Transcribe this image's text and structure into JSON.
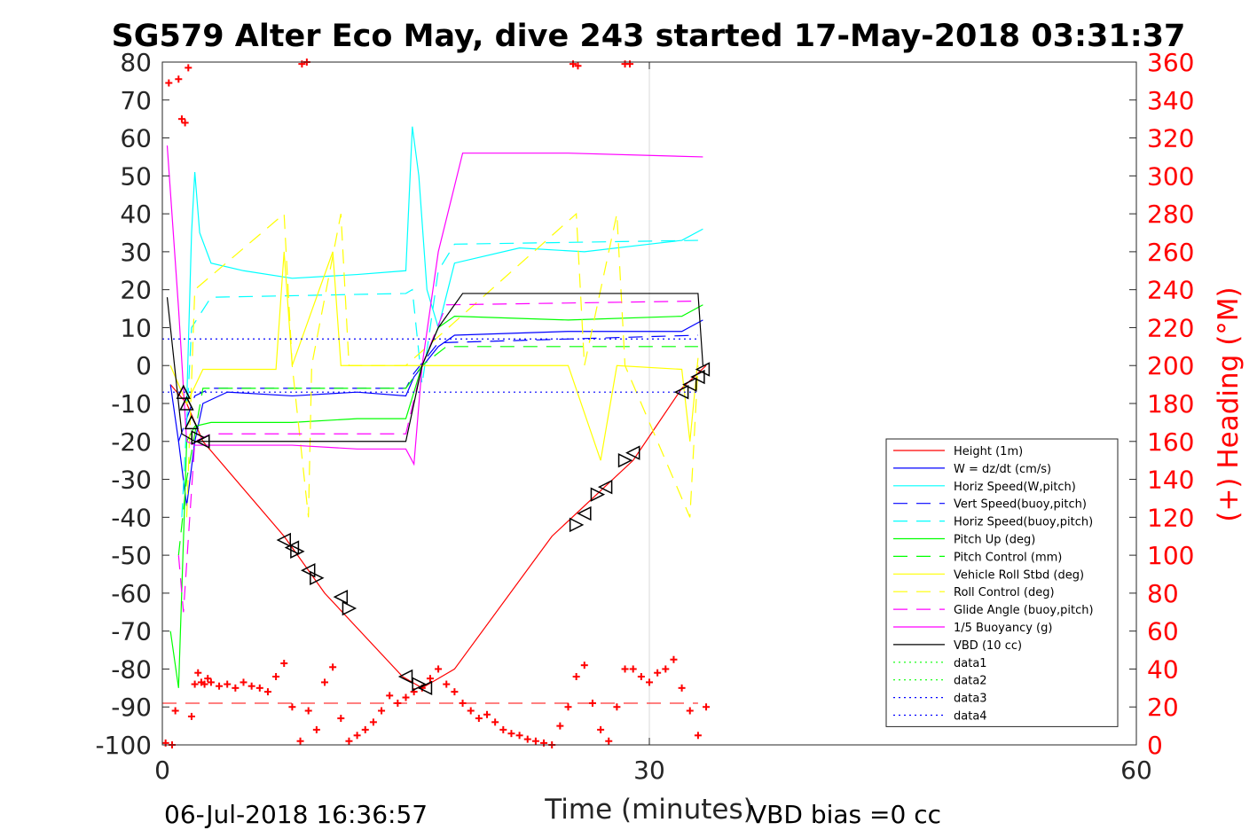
{
  "chart_data": {
    "type": "line",
    "title": "SG579 Alter Eco May, dive 243 started 17-May-2018 03:31:37",
    "xlabel": "Time (minutes)",
    "ylabel": "",
    "ylabel_right": "(+) Heading (°M)",
    "xlim": [
      0,
      60
    ],
    "ylim": [
      -100,
      80
    ],
    "ylim_right": [
      0,
      360
    ],
    "x_ticks": [
      "0",
      "30",
      "60"
    ],
    "y_ticks": [
      "80",
      "70",
      "60",
      "50",
      "40",
      "30",
      "20",
      "10",
      "0",
      "-10",
      "-20",
      "-30",
      "-40",
      "-50",
      "-60",
      "-70",
      "-80",
      "-90",
      "-100"
    ],
    "y_ticks_right": [
      "360",
      "340",
      "320",
      "300",
      "280",
      "260",
      "240",
      "220",
      "200",
      "180",
      "160",
      "140",
      "120",
      "100",
      "80",
      "60",
      "40",
      "20",
      "0"
    ],
    "grid": "x-only",
    "legend_position": "right",
    "footer_left": "06-Jul-2018 16:36:57",
    "footer_right": "VBD bias =0 cc",
    "series": [
      {
        "name": "Height (1m)",
        "color": "#ff0000",
        "style": "solid",
        "x": [
          0.5,
          1.5,
          2.5,
          7.5,
          10,
          14.8,
          16,
          18,
          24,
          29,
          32,
          33.5
        ],
        "y": [
          -5,
          -10,
          -20,
          -45,
          -60,
          -82,
          -85,
          -80,
          -45,
          -25,
          -6,
          0
        ]
      },
      {
        "name": "W = dz/dt (cm/s)",
        "color": "#0000ff",
        "style": "solid",
        "x": [
          0.5,
          1,
          1.5,
          2,
          2.5,
          4,
          8,
          12,
          15,
          15.5,
          17,
          18,
          25,
          32,
          33.3
        ],
        "y": [
          -5,
          -20,
          -37,
          -20,
          -10,
          -7,
          -8,
          -7,
          -8,
          -3,
          5,
          8,
          9,
          9,
          12
        ]
      },
      {
        "name": "Horiz Speed(W,pitch)",
        "color": "#00ffff",
        "style": "solid",
        "x": [
          1.5,
          1.8,
          2,
          2.3,
          3,
          5,
          8,
          12,
          15,
          15.4,
          15.8,
          16.3,
          17,
          18,
          22,
          26,
          30,
          32,
          33.3
        ],
        "y": [
          -10,
          35,
          51,
          35,
          27,
          25,
          23,
          24,
          25,
          63,
          50,
          20,
          10,
          27,
          31,
          30,
          32,
          33,
          36
        ]
      },
      {
        "name": "Vert Speed(buoy,pitch)",
        "color": "#0000ff",
        "style": "dash",
        "x": [
          1,
          2,
          3,
          15,
          15.5,
          17,
          33
        ],
        "y": [
          -20,
          -8,
          -6,
          -6,
          -2,
          6,
          8
        ]
      },
      {
        "name": "Horiz Speed(buoy,pitch)",
        "color": "#00ffff",
        "style": "dash",
        "x": [
          1.2,
          1.8,
          3,
          15,
          15.4,
          16,
          17,
          18,
          33
        ],
        "y": [
          -40,
          10,
          18,
          19,
          20,
          -5,
          25,
          32,
          33
        ]
      },
      {
        "name": "Pitch Up (deg)",
        "color": "#00ff00",
        "style": "solid",
        "x": [
          0.5,
          1,
          1.5,
          2,
          3,
          8,
          12,
          15,
          16,
          17,
          18,
          25,
          32,
          33.3
        ],
        "y": [
          -70,
          -85,
          -20,
          -16,
          -15,
          -15,
          -14,
          -14,
          0,
          10,
          13,
          12,
          13,
          16
        ]
      },
      {
        "name": "Pitch Control (mm)",
        "color": "#00ff00",
        "style": "dash",
        "x": [
          1,
          1.5,
          2.5,
          15,
          16,
          17.5,
          33
        ],
        "y": [
          -50,
          -30,
          -6,
          -6,
          0,
          5,
          5
        ]
      },
      {
        "name": "Vehicle Roll Stbd (deg)",
        "color": "#ffff00",
        "style": "solid",
        "x": [
          0.5,
          1.5,
          2.5,
          7,
          7.5,
          8,
          10.5,
          11,
          15,
          16,
          25,
          27,
          28,
          32,
          32.5,
          33
        ],
        "y": [
          0,
          -10,
          -1,
          -1,
          30,
          0,
          30,
          0,
          0,
          0,
          0,
          -25,
          0,
          -1,
          -20,
          2
        ]
      },
      {
        "name": "Roll Control (deg)",
        "color": "#ffff00",
        "style": "dash",
        "x": [
          1.5,
          2,
          7.5,
          8,
          9,
          9.2,
          11,
          11.5,
          14.5,
          15,
          25.5,
          26,
          28,
          28.5,
          32.5,
          33
        ],
        "y": [
          -40,
          20,
          40,
          0,
          -40,
          0,
          40,
          0,
          0,
          0,
          40,
          0,
          40,
          0,
          -40,
          0
        ]
      },
      {
        "name": "Glide Angle (buoy,pitch)",
        "color": "#ff00ff",
        "style": "dash",
        "x": [
          1,
          1.3,
          2,
          3,
          15,
          16,
          17.5,
          33
        ],
        "y": [
          -50,
          -65,
          -20,
          -18,
          -18,
          0,
          16,
          17
        ]
      },
      {
        "name": "1/5 Buoyancy (g)",
        "color": "#ff00ff",
        "style": "solid",
        "x": [
          0.3,
          1,
          1.5,
          2,
          3,
          8,
          12,
          15,
          15.5,
          16,
          17,
          18.5,
          25,
          33.3
        ],
        "y": [
          58,
          15,
          -20,
          -21,
          -21,
          -21,
          -22,
          -22,
          -26,
          0,
          30,
          56,
          56,
          55
        ]
      },
      {
        "name": "VBD (10 cc)",
        "color": "#000000",
        "style": "solid",
        "x": [
          0.3,
          1.2,
          2,
          3,
          15,
          16,
          17,
          18.5,
          33,
          33.3
        ],
        "y": [
          18,
          -18,
          -20,
          -20,
          -20,
          0,
          10,
          19,
          19,
          0
        ]
      },
      {
        "name": "data1",
        "color": "#00ff00",
        "style": "dot",
        "x": [],
        "y": []
      },
      {
        "name": "data2",
        "color": "#00ff00",
        "style": "dot",
        "x": [],
        "y": []
      },
      {
        "name": "data3",
        "color": "#0000ff",
        "style": "dot",
        "x": [
          0,
          33
        ],
        "y": [
          7,
          7
        ]
      },
      {
        "name": "data4",
        "color": "#0000ff",
        "style": "dot",
        "x": [
          0,
          33
        ],
        "y": [
          -7,
          -7
        ]
      }
    ],
    "extra_lines": [
      {
        "color": "#ff0000",
        "style": "dash",
        "x": [
          0,
          33
        ],
        "y": [
          -89,
          -89
        ]
      }
    ],
    "heading_points": {
      "color": "#ff0000",
      "x": [
        0.2,
        0.4,
        0.6,
        0.8,
        1.0,
        1.2,
        1.4,
        1.6,
        1.8,
        2.0,
        2.2,
        2.4,
        2.6,
        2.8,
        3.0,
        3.5,
        4.0,
        4.5,
        5.0,
        5.5,
        6.0,
        6.5,
        7.0,
        7.5,
        8.0,
        8.5,
        9.0,
        9.5,
        10.0,
        10.5,
        11.0,
        11.5,
        12.0,
        12.5,
        13.0,
        13.5,
        14.0,
        14.5,
        15.0,
        15.5,
        16.0,
        16.5,
        17.0,
        17.5,
        18.0,
        18.5,
        19.0,
        19.5,
        20.0,
        20.5,
        21.0,
        21.5,
        22.0,
        22.5,
        23.0,
        23.5,
        24.0,
        24.5,
        25.0,
        25.5,
        26.0,
        26.5,
        27.0,
        27.5,
        28.0,
        28.5,
        29.0,
        29.5,
        30.0,
        30.5,
        31.0,
        31.5,
        32.0,
        32.5,
        33.0,
        33.5,
        8.6,
        8.9,
        25.3,
        25.6,
        28.5,
        28.8
      ],
      "y": [
        1,
        349,
        0,
        18,
        351,
        330,
        328,
        357,
        15,
        32,
        38,
        33,
        32,
        35,
        33,
        31,
        32,
        30,
        33,
        31,
        30,
        28,
        36,
        43,
        20,
        2,
        18,
        8,
        33,
        41,
        14,
        2,
        5,
        8,
        12,
        18,
        26,
        22,
        25,
        28,
        30,
        35,
        40,
        32,
        28,
        22,
        18,
        14,
        16,
        12,
        8,
        6,
        5,
        3,
        2,
        1,
        0,
        10,
        20,
        36,
        42,
        22,
        8,
        2,
        20,
        40,
        40,
        36,
        33,
        38,
        40,
        45,
        30,
        18,
        5,
        20,
        359,
        360,
        359,
        358,
        359,
        359
      ]
    },
    "triangle_markers": {
      "color": "#000000",
      "x": [
        1.3,
        1.5,
        1.8,
        2.2,
        2.5,
        7.5,
        8,
        8.3,
        9,
        9.5,
        11,
        11.5,
        15,
        15.8,
        16.2,
        25.5,
        26,
        26.8,
        27.3,
        28.5,
        29,
        32,
        32.5,
        33,
        33.3
      ],
      "y": [
        -7,
        -10,
        -15,
        -19,
        -20,
        -46,
        -48,
        -49,
        -54,
        -56,
        -61,
        -64,
        -82,
        -84,
        -85,
        -42,
        -39,
        -34,
        -32,
        -25,
        -23,
        -7,
        -5,
        -3,
        -1
      ],
      "dir": [
        "up",
        "up",
        "up",
        "right",
        "left",
        "left",
        "left",
        "right",
        "left",
        "right",
        "left",
        "right",
        "left",
        "right",
        "left",
        "right",
        "left",
        "right",
        "left",
        "right",
        "left",
        "left",
        "left",
        "left",
        "left"
      ]
    }
  }
}
